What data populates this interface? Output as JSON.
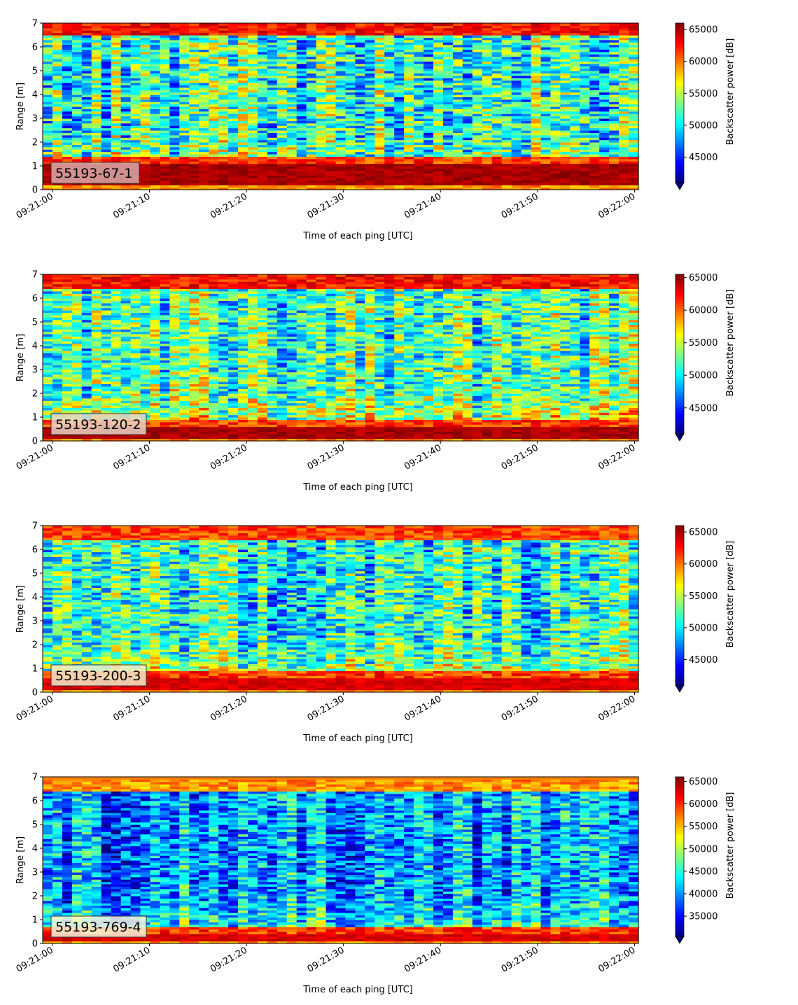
{
  "figure": {
    "xlabel": "Time of each ping [UTC]",
    "ylabel": "Range [m]",
    "colorbar_label": "Backscatter power [dB]"
  },
  "chart_data": [
    {
      "type": "heatmap",
      "label": "55193-67-1",
      "colormap": "jet",
      "x_ticks": [
        "09:21:00",
        "09:21:10",
        "09:21:20",
        "09:21:30",
        "09:21:40",
        "09:21:50",
        "09:22:00"
      ],
      "x_range_seconds": [
        -1,
        60.4
      ],
      "y_ticks": [
        0,
        1,
        2,
        3,
        4,
        5,
        6,
        7
      ],
      "ylim": [
        0,
        7
      ],
      "xlabel": "Time of each ping [UTC]",
      "ylabel": "Range [m]",
      "colorbar_ticks": [
        45000,
        50000,
        55000,
        60000,
        65000
      ],
      "colorbar_range": [
        41000,
        66000
      ],
      "colorbar_label": "Backscatter power [dB]",
      "colorbar_extend": "min",
      "grid": false,
      "label_box_color": "#d9a9a9",
      "features": {
        "strong_bottom_band_m": [
          0.25,
          1.1
        ],
        "bottom_intensity": 1.0,
        "top_band_m": [
          6.5,
          7
        ],
        "top_intensity": 0.95,
        "mid_level": 0.42,
        "mid_spread": 0.22,
        "clear_patch": 0.0
      }
    },
    {
      "type": "heatmap",
      "label": "55193-120-2",
      "colormap": "jet",
      "x_ticks": [
        "09:21:00",
        "09:21:10",
        "09:21:20",
        "09:21:30",
        "09:21:40",
        "09:21:50",
        "09:22:00"
      ],
      "x_range_seconds": [
        -1,
        60.4
      ],
      "y_ticks": [
        0,
        1,
        2,
        3,
        4,
        5,
        6,
        7
      ],
      "ylim": [
        0,
        7
      ],
      "xlabel": "Time of each ping [UTC]",
      "ylabel": "Range [m]",
      "colorbar_ticks": [
        45000,
        50000,
        55000,
        60000,
        65000
      ],
      "colorbar_range": [
        41000,
        65500
      ],
      "colorbar_label": "Backscatter power [dB]",
      "colorbar_extend": "min",
      "grid": false,
      "label_box_color": "#e8d2c4",
      "features": {
        "strong_bottom_band_m": [
          0.15,
          0.6
        ],
        "bottom_intensity": 1.0,
        "top_band_m": [
          6.4,
          7
        ],
        "top_intensity": 0.95,
        "mid_level": 0.45,
        "mid_spread": 0.2,
        "clear_patch": 0.1
      }
    },
    {
      "type": "heatmap",
      "label": "55193-200-3",
      "colormap": "jet",
      "x_ticks": [
        "09:21:00",
        "09:21:10",
        "09:21:20",
        "09:21:30",
        "09:21:40",
        "09:21:50",
        "09:22:00"
      ],
      "x_range_seconds": [
        -1,
        60.4
      ],
      "y_ticks": [
        0,
        1,
        2,
        3,
        4,
        5,
        6,
        7
      ],
      "ylim": [
        0,
        7
      ],
      "xlabel": "Time of each ping [UTC]",
      "ylabel": "Range [m]",
      "colorbar_ticks": [
        45000,
        50000,
        55000,
        60000,
        65000
      ],
      "colorbar_range": [
        41000,
        66000
      ],
      "colorbar_label": "Backscatter power [dB]",
      "colorbar_extend": "min",
      "grid": false,
      "label_box_color": "#f2ecc9",
      "features": {
        "strong_bottom_band_m": [
          0.15,
          0.6
        ],
        "bottom_intensity": 0.95,
        "top_band_m": [
          6.4,
          7
        ],
        "top_intensity": 0.9,
        "mid_level": 0.4,
        "mid_spread": 0.2,
        "clear_patch": 0.1
      }
    },
    {
      "type": "heatmap",
      "label": "55193-769-4",
      "colormap": "jet",
      "x_ticks": [
        "09:21:00",
        "09:21:10",
        "09:21:20",
        "09:21:30",
        "09:21:40",
        "09:21:50",
        "09:22:00"
      ],
      "x_range_seconds": [
        -1,
        60.4
      ],
      "y_ticks": [
        0,
        1,
        2,
        3,
        4,
        5,
        6,
        7
      ],
      "ylim": [
        0,
        7
      ],
      "xlabel": "Time of each ping [UTC]",
      "ylabel": "Range [m]",
      "colorbar_ticks": [
        35000,
        40000,
        45000,
        50000,
        55000,
        60000,
        65000
      ],
      "colorbar_range": [
        30500,
        66000
      ],
      "colorbar_label": "Backscatter power [dB]",
      "colorbar_extend": "min",
      "grid": false,
      "label_box_color": "#f4f4da",
      "features": {
        "strong_bottom_band_m": [
          0.15,
          0.4
        ],
        "bottom_intensity": 0.95,
        "top_band_m": [
          6.4,
          6.9
        ],
        "top_intensity": 0.82,
        "mid_level": 0.27,
        "mid_spread": 0.18,
        "clear_patch": 0.3
      }
    }
  ]
}
